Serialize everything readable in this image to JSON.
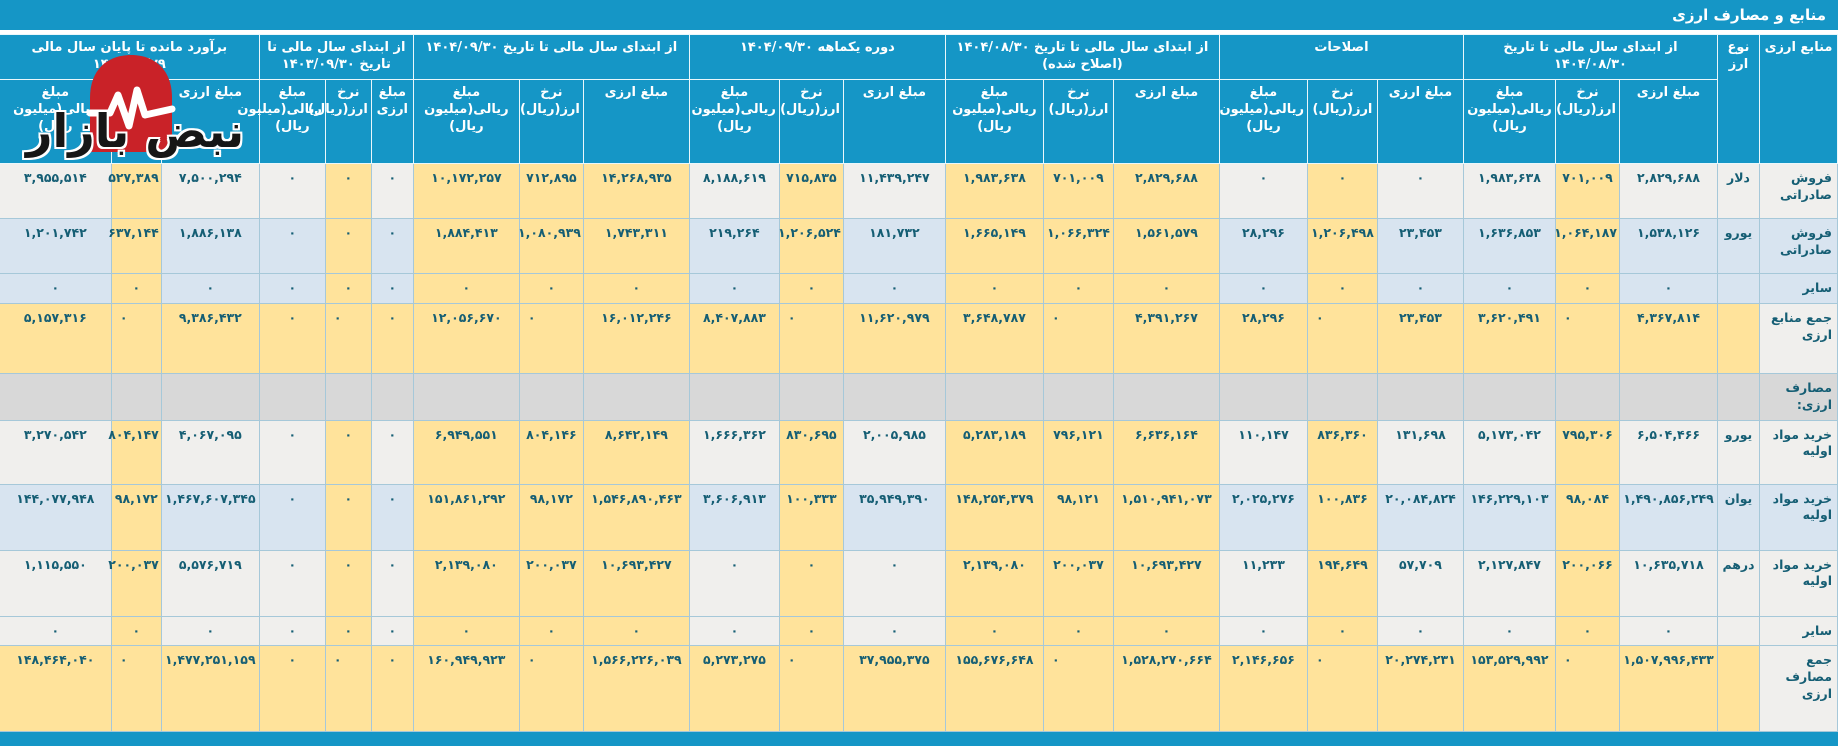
{
  "title": "منابع و مصارف ارزی",
  "watermark": {
    "brand_text": "نبض بازار"
  },
  "colors": {
    "header_blue": "#1596C6",
    "rate_highlight_yellow": "#FFE39B",
    "row_stripe_white": "#F0EFED",
    "row_stripe_blue": "#D8E4F0",
    "section_grey": "#D8D8D8",
    "cell_text": "#155E74",
    "logo_red": "#C92228"
  },
  "table": {
    "corner_label": "منابع ارزی",
    "currency_label": "نوع ارز",
    "sub_columns": [
      "مبلغ ارزی",
      "نرخ ارز(ریال)",
      "مبلغ ریالی(میلیون ریال)"
    ],
    "groups": [
      {
        "label": "از ابتدای سال مالی تا تاریخ ۱۴۰۴/۰۸/۳۰"
      },
      {
        "label": "اصلاحات"
      },
      {
        "label": "از ابتدای سال مالی تا تاریخ ۱۴۰۴/۰۸/۳۰ (اصلاح شده)"
      },
      {
        "label": "دوره یکماهه ۱۴۰۴/۰۹/۳۰"
      },
      {
        "label": "از ابتدای سال مالی تا تاریخ ۱۴۰۴/۰۹/۳۰"
      },
      {
        "label": "از ابتدای سال مالی تا تاریخ ۱۴۰۳/۰۹/۳۰"
      },
      {
        "label": "برآورد مانده تا پایان سال مالی ۱۴۰۴/۱۲/۲۹"
      }
    ],
    "rows": [
      {
        "label": "فروش صادراتی",
        "currency": "دلار",
        "type": "data",
        "shade": "white",
        "values": [
          "۲,۸۲۹,۶۸۸",
          "۷۰۱,۰۰۹",
          "۱,۹۸۳,۶۳۸",
          "۰",
          "۰",
          "۰",
          "۲,۸۲۹,۶۸۸",
          "۷۰۱,۰۰۹",
          "۱,۹۸۳,۶۳۸",
          "۱۱,۴۳۹,۲۴۷",
          "۷۱۵,۸۳۵",
          "۸,۱۸۸,۶۱۹",
          "۱۴,۲۶۸,۹۳۵",
          "۷۱۲,۸۹۵",
          "۱۰,۱۷۲,۲۵۷",
          "۰",
          "۰",
          "۰",
          "۷,۵۰۰,۲۹۴",
          "۵۲۷,۳۸۹",
          "۳,۹۵۵,۵۱۴"
        ]
      },
      {
        "label": "فروش صادراتی",
        "currency": "یورو",
        "type": "data",
        "shade": "blue",
        "values": [
          "۱,۵۳۸,۱۲۶",
          "۱,۰۶۴,۱۸۷",
          "۱,۶۳۶,۸۵۳",
          "۲۳,۴۵۳",
          "۱,۲۰۶,۴۹۸",
          "۲۸,۲۹۶",
          "۱,۵۶۱,۵۷۹",
          "۱,۰۶۶,۳۲۴",
          "۱,۶۶۵,۱۴۹",
          "۱۸۱,۷۳۲",
          "۱,۲۰۶,۵۲۴",
          "۲۱۹,۲۶۴",
          "۱,۷۴۳,۳۱۱",
          "۱,۰۸۰,۹۳۹",
          "۱,۸۸۴,۴۱۳",
          "۰",
          "۰",
          "۰",
          "۱,۸۸۶,۱۳۸",
          "۶۳۷,۱۴۴",
          "۱,۲۰۱,۷۴۲"
        ]
      },
      {
        "label": "سایر",
        "currency": "",
        "type": "data",
        "shade": "blue",
        "values": [
          "۰",
          "۰",
          "۰",
          "۰",
          "۰",
          "۰",
          "۰",
          "۰",
          "۰",
          "۰",
          "۰",
          "۰",
          "۰",
          "۰",
          "۰",
          "۰",
          "۰",
          "۰",
          "۰",
          "۰",
          "۰"
        ]
      },
      {
        "label": "جمع منابع ارزی",
        "currency": "",
        "type": "total",
        "shade": "white",
        "values": [
          "۴,۳۶۷,۸۱۴",
          "۰",
          "۳,۶۲۰,۴۹۱",
          "۲۳,۴۵۳",
          "۰",
          "۲۸,۲۹۶",
          "۴,۳۹۱,۲۶۷",
          "۰",
          "۳,۶۴۸,۷۸۷",
          "۱۱,۶۲۰,۹۷۹",
          "۰",
          "۸,۴۰۷,۸۸۳",
          "۱۶,۰۱۲,۲۴۶",
          "۰",
          "۱۲,۰۵۶,۶۷۰",
          "۰",
          "۰",
          "۰",
          "۹,۳۸۶,۴۳۲",
          "۰",
          "۵,۱۵۷,۳۱۶"
        ]
      },
      {
        "label": "مصارف ارزی:",
        "currency": "",
        "type": "section",
        "shade": "section",
        "values": []
      },
      {
        "label": "خرید مواد اولیه",
        "currency": "یورو",
        "type": "data",
        "shade": "white",
        "values": [
          "۶,۵۰۴,۴۶۶",
          "۷۹۵,۳۰۶",
          "۵,۱۷۳,۰۴۲",
          "۱۳۱,۶۹۸",
          "۸۳۶,۳۶۰",
          "۱۱۰,۱۴۷",
          "۶,۶۳۶,۱۶۴",
          "۷۹۶,۱۲۱",
          "۵,۲۸۳,۱۸۹",
          "۲,۰۰۵,۹۸۵",
          "۸۳۰,۶۹۵",
          "۱,۶۶۶,۳۶۲",
          "۸,۶۴۲,۱۴۹",
          "۸۰۴,۱۴۶",
          "۶,۹۴۹,۵۵۱",
          "۰",
          "۰",
          "۰",
          "۴,۰۶۷,۰۹۵",
          "۸۰۴,۱۴۷",
          "۳,۲۷۰,۵۴۲"
        ]
      },
      {
        "label": "خرید مواد اولیه",
        "currency": "یوان",
        "type": "data",
        "shade": "blue",
        "values": [
          "۱,۴۹۰,۸۵۶,۲۴۹",
          "۹۸,۰۸۴",
          "۱۴۶,۲۲۹,۱۰۳",
          "۲۰,۰۸۴,۸۲۴",
          "۱۰۰,۸۳۶",
          "۲,۰۲۵,۲۷۶",
          "۱,۵۱۰,۹۴۱,۰۷۳",
          "۹۸,۱۲۱",
          "۱۴۸,۲۵۴,۳۷۹",
          "۳۵,۹۴۹,۳۹۰",
          "۱۰۰,۳۳۳",
          "۳,۶۰۶,۹۱۳",
          "۱,۵۴۶,۸۹۰,۴۶۳",
          "۹۸,۱۷۲",
          "۱۵۱,۸۶۱,۲۹۲",
          "۰",
          "۰",
          "۰",
          "۱,۴۶۷,۶۰۷,۳۴۵",
          "۹۸,۱۷۲",
          "۱۴۴,۰۷۷,۹۴۸"
        ]
      },
      {
        "label": "خرید مواد اولیه",
        "currency": "درهم",
        "type": "data",
        "shade": "white",
        "values": [
          "۱۰,۶۳۵,۷۱۸",
          "۲۰۰,۰۶۶",
          "۲,۱۲۷,۸۴۷",
          "۵۷,۷۰۹",
          "۱۹۴,۶۴۹",
          "۱۱,۲۳۳",
          "۱۰,۶۹۳,۴۲۷",
          "۲۰۰,۰۳۷",
          "۲,۱۳۹,۰۸۰",
          "۰",
          "۰",
          "۰",
          "۱۰,۶۹۳,۴۲۷",
          "۲۰۰,۰۳۷",
          "۲,۱۳۹,۰۸۰",
          "۰",
          "۰",
          "۰",
          "۵,۵۷۶,۷۱۹",
          "۲۰۰,۰۳۷",
          "۱,۱۱۵,۵۵۰"
        ]
      },
      {
        "label": "سایر",
        "currency": "",
        "type": "data",
        "shade": "white",
        "values": [
          "۰",
          "۰",
          "۰",
          "۰",
          "۰",
          "۰",
          "۰",
          "۰",
          "۰",
          "۰",
          "۰",
          "۰",
          "۰",
          "۰",
          "۰",
          "۰",
          "۰",
          "۰",
          "۰",
          "۰",
          "۰"
        ]
      },
      {
        "label": "جمع مصارف ارزی",
        "currency": "",
        "type": "total",
        "shade": "white",
        "values": [
          "۱,۵۰۷,۹۹۶,۴۳۳",
          "۰",
          "۱۵۳,۵۲۹,۹۹۲",
          "۲۰,۲۷۴,۲۳۱",
          "۰",
          "۲,۱۴۶,۶۵۶",
          "۱,۵۲۸,۲۷۰,۶۶۴",
          "۰",
          "۱۵۵,۶۷۶,۶۴۸",
          "۳۷,۹۵۵,۳۷۵",
          "۰",
          "۵,۲۷۳,۲۷۵",
          "۱,۵۶۶,۲۲۶,۰۳۹",
          "۰",
          "۱۶۰,۹۴۹,۹۲۳",
          "۰",
          "۰",
          "۰",
          "۱,۴۷۷,۲۵۱,۱۵۹",
          "۰",
          "۱۴۸,۴۶۴,۰۴۰"
        ]
      }
    ]
  }
}
